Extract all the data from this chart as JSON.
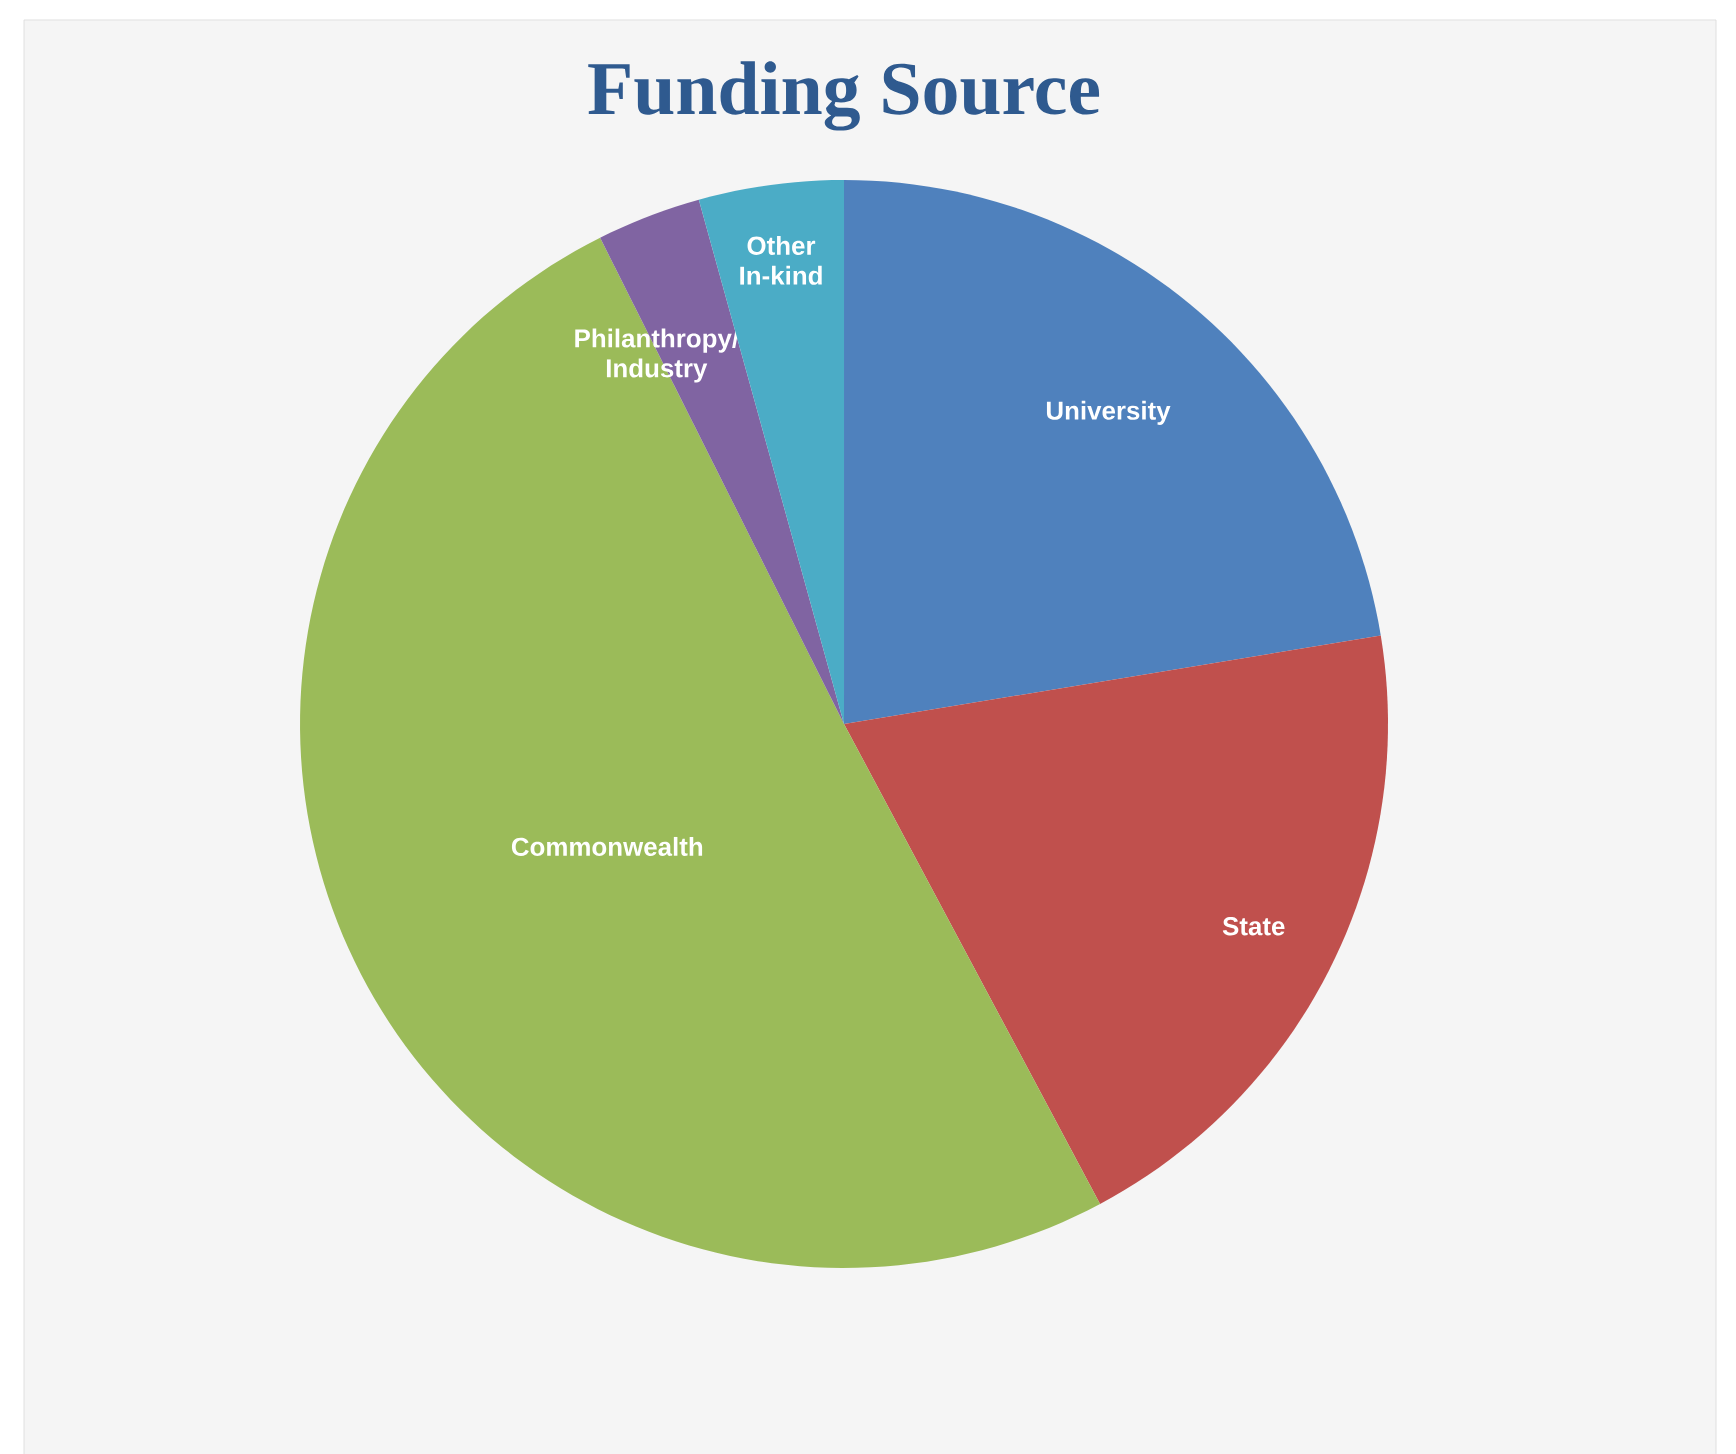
{
  "chart_data": {
    "type": "pie",
    "title": "Funding Source",
    "categories": [
      "University",
      "State",
      "Commonwealth",
      "Philanthropy/ Industry",
      "Other In-kind"
    ],
    "values": [
      22.4,
      19.8,
      50.4,
      3.1,
      4.3
    ],
    "colors": [
      "#4f81bd",
      "#c0504d",
      "#9bbb59",
      "#8064a2",
      "#4bacc6"
    ]
  }
}
